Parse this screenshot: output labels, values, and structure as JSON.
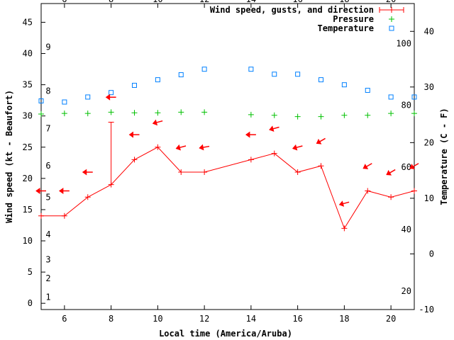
{
  "chart_data": {
    "type": "line",
    "xlabel": "Local time (America/Aruba)",
    "ylabel_left": "Wind speed (kt - Beaufort)",
    "ylabel_right": "Temperature (C - F)",
    "xlim": [
      5,
      21
    ],
    "ylim_left": [
      -1,
      48
    ],
    "ylim_right_c": [
      -10,
      45
    ],
    "x_ticks": [
      6,
      8,
      10,
      12,
      14,
      16,
      18,
      20
    ],
    "y_ticks_left": [
      0,
      5,
      10,
      15,
      20,
      25,
      30,
      35,
      40,
      45
    ],
    "y_ticks_right_c": [
      -10,
      0,
      10,
      20,
      30,
      40
    ],
    "f_labels": [
      {
        "label": "20",
        "c": -6.7
      },
      {
        "label": "40",
        "c": 4.4
      },
      {
        "label": "60",
        "c": 15.6
      },
      {
        "label": "80",
        "c": 26.7
      },
      {
        "label": "100",
        "c": 37.8
      }
    ],
    "beaufort_labels": [
      {
        "label": "1",
        "kt": 1
      },
      {
        "label": "2",
        "kt": 4
      },
      {
        "label": "3",
        "kt": 7
      },
      {
        "label": "4",
        "kt": 11
      },
      {
        "label": "5",
        "kt": 17
      },
      {
        "label": "6",
        "kt": 22
      },
      {
        "label": "7",
        "kt": 28
      },
      {
        "label": "8",
        "kt": 34
      },
      {
        "label": "9",
        "kt": 41
      }
    ],
    "legend": [
      "Wind speed, gusts, and direction",
      "Pressure",
      "Temperature"
    ],
    "legend_position": "top-right",
    "colors": {
      "wind": "#ff0000",
      "pressure": "#00c000",
      "temperature": "#0080ff"
    },
    "wind": {
      "x": [
        5,
        6,
        7,
        8,
        9,
        10,
        11,
        12,
        14,
        15,
        16,
        17,
        18,
        19,
        20,
        21
      ],
      "speed": [
        14,
        14,
        17,
        19,
        23,
        25,
        21,
        21,
        23,
        24,
        21,
        22,
        12,
        18,
        17,
        18
      ],
      "gust": {
        "x": 8,
        "value": 29
      },
      "arrow_y": [
        18,
        18,
        21,
        33,
        27,
        29,
        25,
        25,
        27,
        28,
        25,
        26,
        16,
        22,
        21,
        22
      ],
      "direction_deg": [
        90,
        90,
        90,
        90,
        90,
        75,
        75,
        80,
        90,
        75,
        75,
        60,
        75,
        60,
        60,
        60
      ]
    },
    "pressure": {
      "x": [
        5,
        6,
        7,
        8,
        9,
        10,
        11,
        12,
        14,
        15,
        16,
        17,
        18,
        19,
        20,
        21
      ],
      "y_on_wind_axis": [
        30.3,
        30.4,
        30.4,
        30.6,
        30.5,
        30.5,
        30.6,
        30.6,
        30.2,
        30.1,
        29.9,
        29.9,
        30.1,
        30.1,
        30.4,
        30.4
      ]
    },
    "temperature": {
      "x": [
        5,
        6,
        7,
        8,
        9,
        10,
        11,
        12,
        14,
        15,
        16,
        17,
        18,
        19,
        20,
        21
      ],
      "c": [
        27.5,
        27.3,
        28.2,
        29.0,
        30.3,
        31.3,
        32.2,
        33.2,
        33.2,
        32.3,
        32.3,
        31.3,
        30.4,
        29.4,
        28.2,
        28.2
      ]
    }
  }
}
